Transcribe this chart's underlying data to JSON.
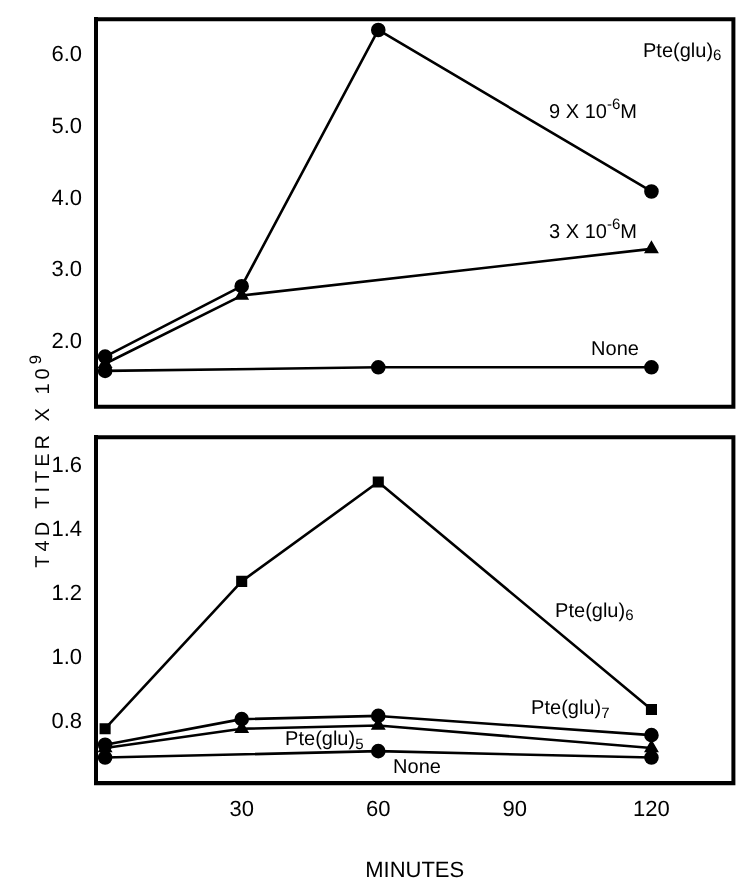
{
  "chart_data": [
    {
      "type": "line",
      "ylabel": "T4D TITER X 10$^{9}$",
      "xlim": [
        -2,
        138
      ],
      "ylim": [
        1.1,
        6.5
      ],
      "yticks": [
        {
          "value": 2,
          "label": "2.0"
        },
        {
          "value": 3,
          "label": "3.0"
        },
        {
          "value": 4,
          "label": "4.0"
        },
        {
          "value": 5,
          "label": "5.0"
        },
        {
          "value": 6,
          "label": "6.0"
        }
      ],
      "tick_labels": "y",
      "grid": false,
      "legend": false,
      "series": [
        {
          "name": "9 X 10$^{-6}$M",
          "color": "#000000",
          "marker": "circle",
          "x": [
            0,
            30,
            60,
            120
          ],
          "values": [
            1.8,
            2.78,
            6.35,
            4.1
          ]
        },
        {
          "name": "3 X 10$^{-6}$M",
          "color": "#000000",
          "marker": "triangle",
          "x": [
            0,
            30,
            120
          ],
          "values": [
            1.7,
            2.65,
            3.3
          ]
        },
        {
          "name": "None",
          "color": "#000000",
          "marker": "circle",
          "x": [
            0,
            60,
            120
          ],
          "values": [
            1.6,
            1.65,
            1.65
          ]
        }
      ],
      "annotations": [
        "Pte(glu)$_{6}$"
      ]
    },
    {
      "type": "line",
      "xlabel": "MINUTES",
      "xlim": [
        -2,
        138
      ],
      "xticks": [
        30,
        60,
        90,
        120
      ],
      "ylim": [
        0.61,
        1.69
      ],
      "yticks": [
        0.8,
        {
          "value": 1,
          "label": "1.0"
        },
        1.2,
        1.4,
        1.6
      ],
      "grid": false,
      "legend": false,
      "series": [
        {
          "name": "Pte(glu)$_{6}$",
          "color": "#000000",
          "marker": "square",
          "x": [
            0,
            30,
            60,
            120
          ],
          "values": [
            0.78,
            1.24,
            1.55,
            0.84
          ]
        },
        {
          "name": "Pte(glu)$_{7}$",
          "color": "#000000",
          "marker": "circle",
          "x": [
            0,
            30,
            60,
            120
          ],
          "values": [
            0.73,
            0.81,
            0.82,
            0.76
          ]
        },
        {
          "name": "Pte(glu)$_{5}$",
          "color": "#000000",
          "marker": "triangle",
          "x": [
            0,
            30,
            60,
            120
          ],
          "values": [
            0.72,
            0.78,
            0.79,
            0.72
          ]
        },
        {
          "name": "None",
          "color": "#000000",
          "marker": "circle",
          "x": [
            0,
            60,
            120
          ],
          "values": [
            0.69,
            0.71,
            0.69
          ]
        }
      ]
    }
  ]
}
